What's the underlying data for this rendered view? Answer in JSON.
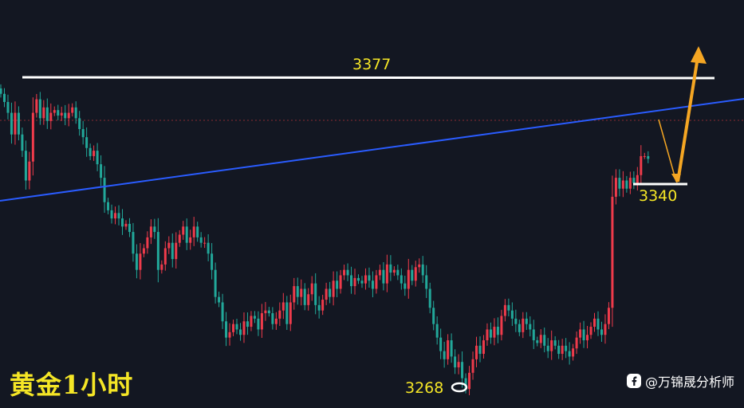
{
  "chart_data": {
    "type": "candlestick",
    "title": "黄金1小时",
    "colors": {
      "background": "#131722",
      "up": "#ef3b4b",
      "down": "#22a89a",
      "resistance": "#ffffff",
      "trendline": "#2a5cff",
      "projection": "#f5a623",
      "label": "#f5e626",
      "current_price_line": "#8a2b33"
    },
    "y_range": [
      3259,
      3392
    ],
    "candle_closes": [
      3375,
      3372,
      3368,
      3360,
      3368,
      3360,
      3354,
      3343,
      3350,
      3368,
      3373,
      3366,
      3370,
      3365,
      3368,
      3369,
      3367,
      3368,
      3366,
      3368,
      3370,
      3366,
      3362,
      3359,
      3355,
      3352,
      3354,
      3349,
      3344,
      3335,
      3332,
      3329,
      3331,
      3329,
      3326,
      3327,
      3324,
      3316,
      3310,
      3316,
      3318,
      3322,
      3326,
      3324,
      3310,
      3312,
      3318,
      3320,
      3314,
      3320,
      3323,
      3326,
      3320,
      3322,
      3326,
      3322,
      3320,
      3320,
      3316,
      3310,
      3300,
      3298,
      3291,
      3285,
      3287,
      3290,
      3288,
      3286,
      3291,
      3289,
      3293,
      3292,
      3288,
      3294,
      3295,
      3294,
      3290,
      3292,
      3295,
      3298,
      3290,
      3298,
      3304,
      3300,
      3303,
      3297,
      3301,
      3305,
      3297,
      3295,
      3299,
      3303,
      3300,
      3306,
      3303,
      3308,
      3310,
      3308,
      3304,
      3307,
      3306,
      3305,
      3308,
      3306,
      3303,
      3308,
      3310,
      3305,
      3312,
      3309,
      3310,
      3308,
      3305,
      3303,
      3310,
      3306,
      3311,
      3312,
      3308,
      3303,
      3296,
      3290,
      3285,
      3280,
      3277,
      3284,
      3278,
      3274,
      3276,
      3270,
      3266,
      3272,
      3277,
      3282,
      3279,
      3284,
      3288,
      3285,
      3289,
      3286,
      3293,
      3297,
      3295,
      3292,
      3290,
      3287,
      3292,
      3290,
      3288,
      3284,
      3283,
      3286,
      3282,
      3280,
      3284,
      3282,
      3279,
      3282,
      3280,
      3278,
      3281,
      3285,
      3288,
      3284,
      3286,
      3289,
      3292,
      3288,
      3286,
      3290,
      3296,
      3337,
      3344,
      3340,
      3343,
      3340,
      3344,
      3342,
      3345,
      3352,
      3352,
      3351
    ],
    "levels": {
      "resistance": "3377",
      "support": "3340",
      "low": "3268"
    }
  },
  "watermark": "@万锦晟分析师"
}
